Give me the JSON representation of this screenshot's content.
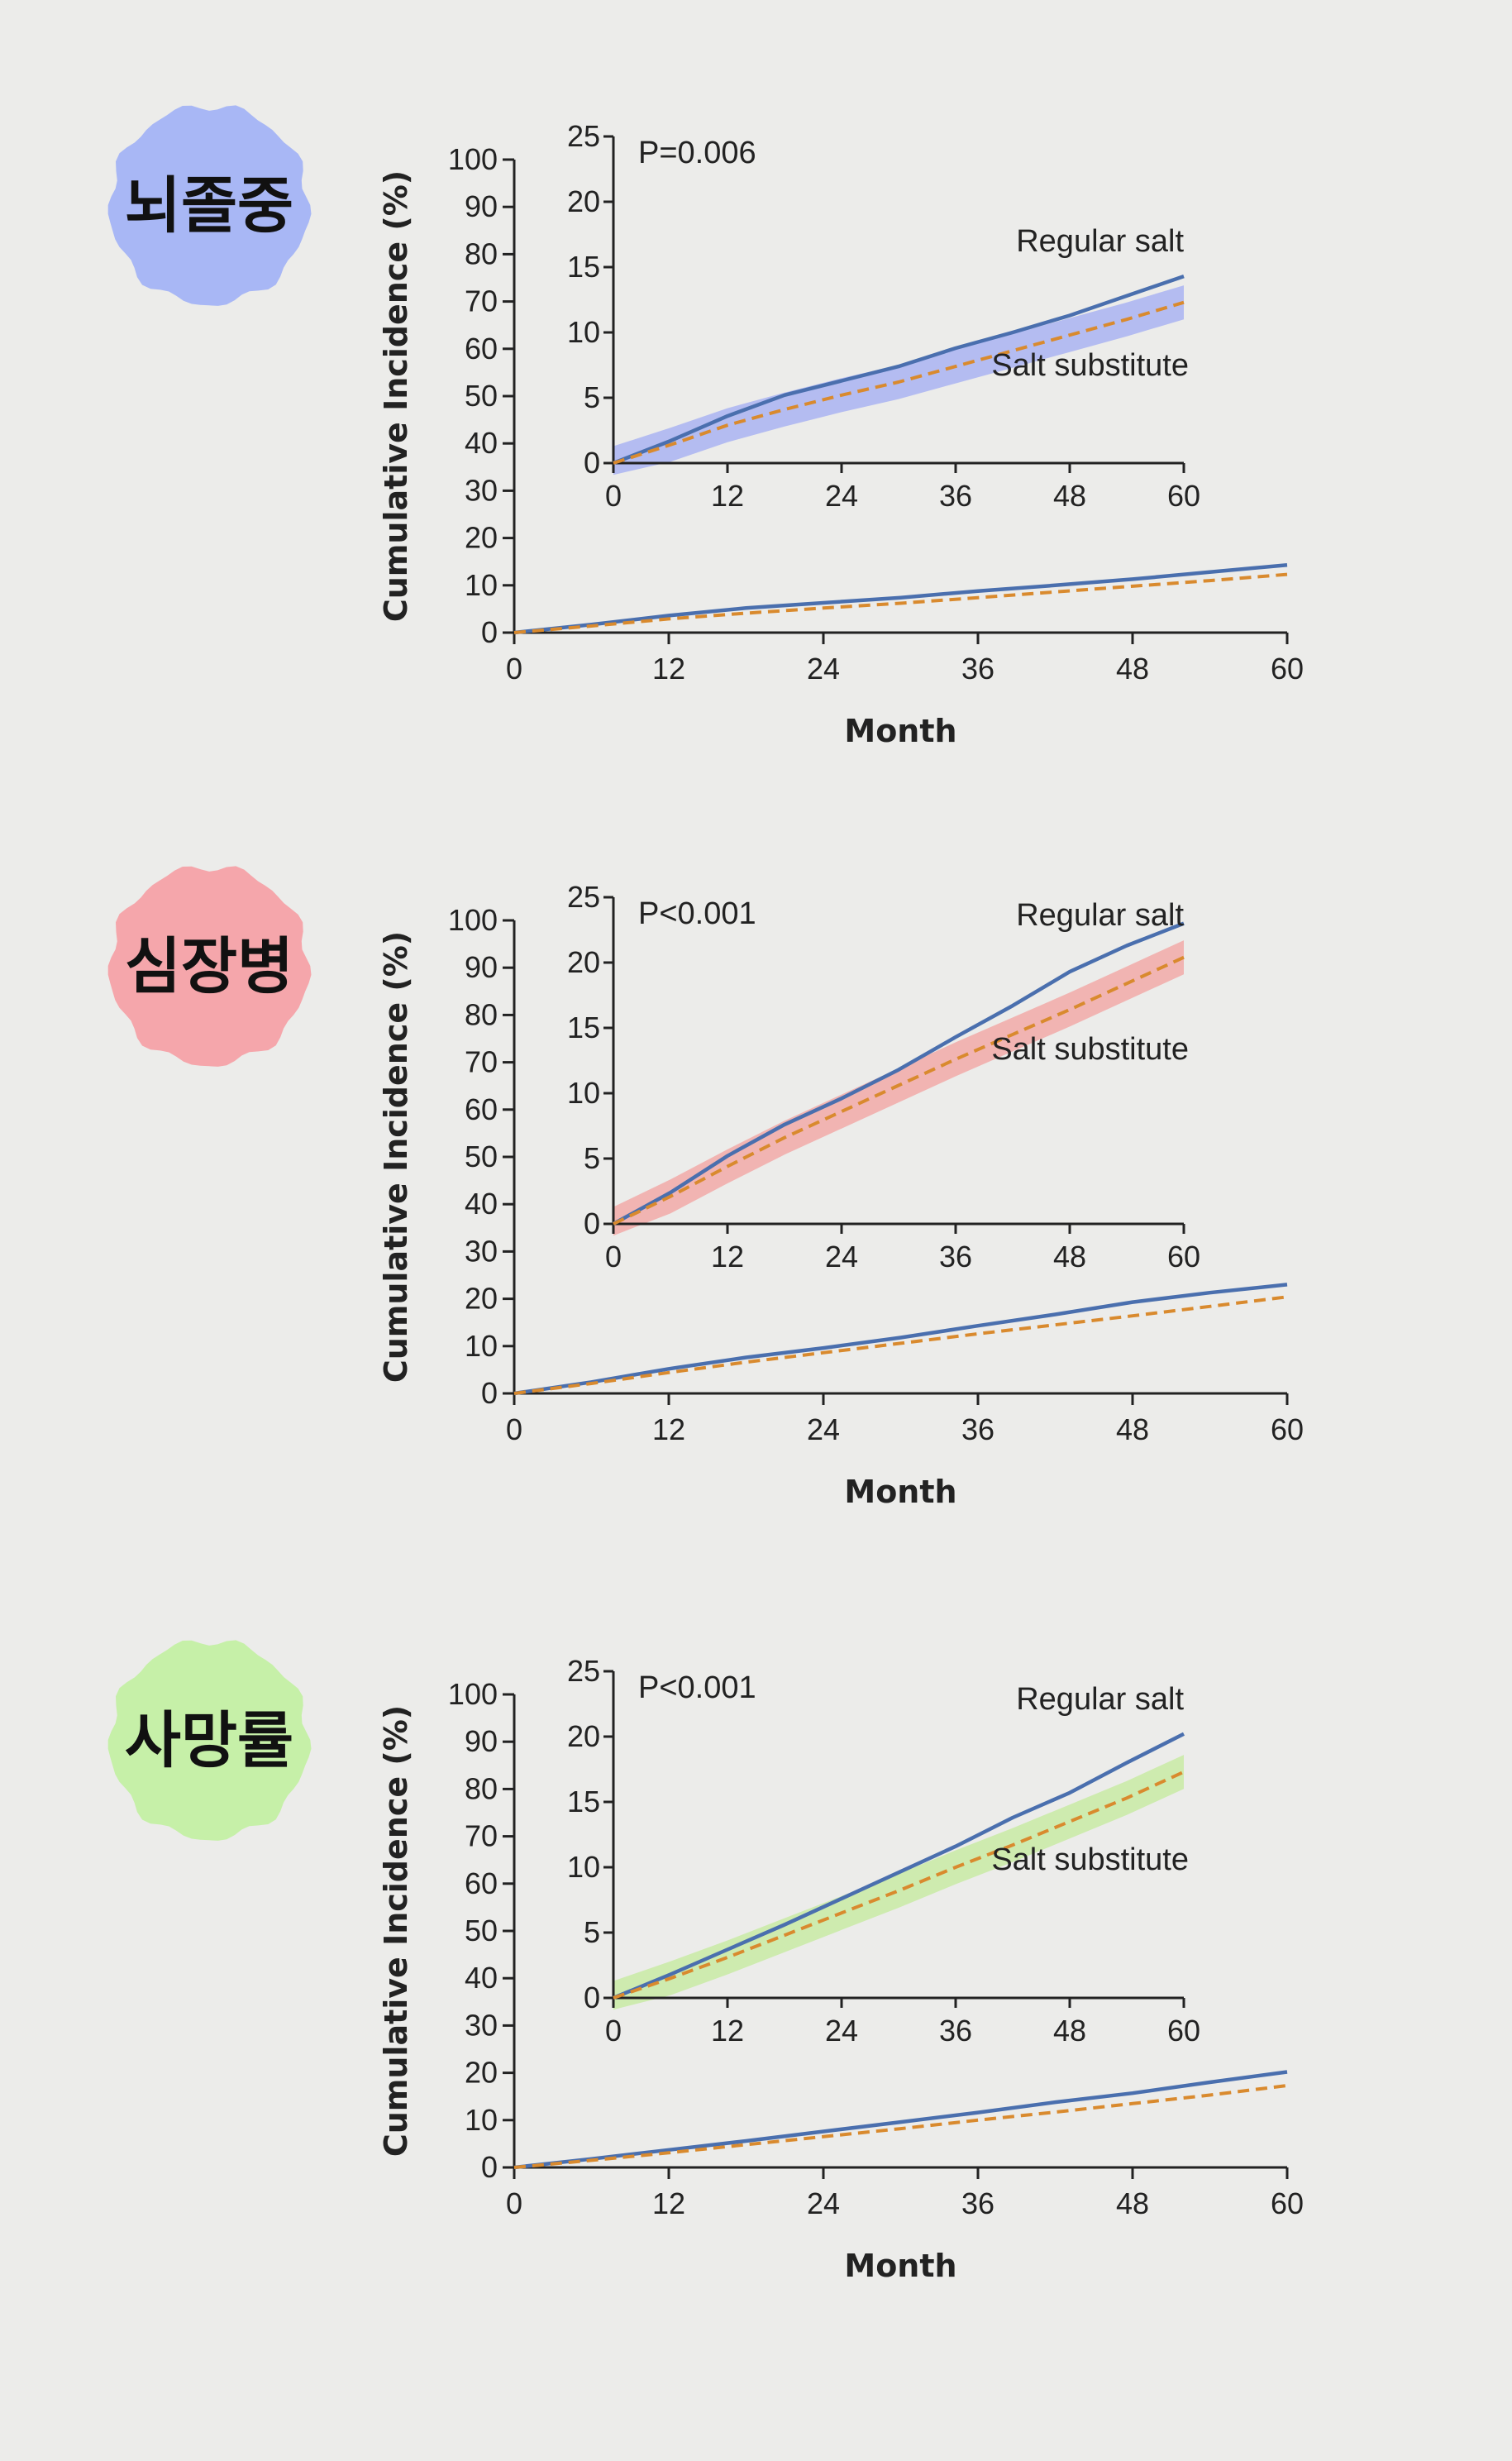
{
  "chart_data": [
    {
      "type": "line",
      "panel_label": "뇌졸중",
      "panel_color": "#a8b7f5",
      "band_color": "#aab4f2",
      "xlabel": "Month",
      "ylabel": "Cumulative Incidence (%)",
      "xlim": [
        0,
        60
      ],
      "ylim": [
        0,
        100
      ],
      "x_ticks": [
        "0",
        "12",
        "24",
        "36",
        "48",
        "60"
      ],
      "y_ticks": [
        "0",
        "10",
        "20",
        "30",
        "40",
        "50",
        "60",
        "70",
        "80",
        "90",
        "100"
      ],
      "series": [
        {
          "name": "Regular salt",
          "color": "#4a6fae",
          "dash": "solid",
          "x": [
            0,
            6,
            12,
            18,
            24,
            30,
            36,
            42,
            48,
            54,
            60
          ],
          "y": [
            0,
            1.7,
            3.6,
            5.2,
            6.3,
            7.4,
            8.8,
            10.0,
            11.3,
            12.8,
            14.3
          ]
        },
        {
          "name": "Salt substitute",
          "color": "#d98a2e",
          "dash": "dashed",
          "x": [
            0,
            6,
            12,
            18,
            24,
            30,
            36,
            42,
            48,
            54,
            60
          ],
          "y": [
            0,
            1.4,
            2.9,
            4.1,
            5.2,
            6.2,
            7.4,
            8.6,
            9.8,
            11.0,
            12.3
          ]
        }
      ],
      "inset": {
        "xlim": [
          0,
          60
        ],
        "ylim": [
          0,
          25
        ],
        "x_ticks": [
          "0",
          "12",
          "24",
          "36",
          "48",
          "60"
        ],
        "y_ticks": [
          "0",
          "5",
          "10",
          "15",
          "20",
          "25"
        ],
        "p_value": "P=0.006",
        "label_regular": "Regular salt",
        "label_substitute": "Salt substitute"
      }
    },
    {
      "type": "line",
      "panel_label": "심장병",
      "panel_color": "#f5a6ab",
      "band_color": "#f2aaa8",
      "xlabel": "Month",
      "ylabel": "Cumulative Incidence (%)",
      "xlim": [
        0,
        60
      ],
      "ylim": [
        0,
        100
      ],
      "x_ticks": [
        "0",
        "12",
        "24",
        "36",
        "48",
        "60"
      ],
      "y_ticks": [
        "0",
        "10",
        "20",
        "30",
        "40",
        "50",
        "60",
        "70",
        "80",
        "90",
        "100"
      ],
      "series": [
        {
          "name": "Regular salt",
          "color": "#4a6fae",
          "dash": "solid",
          "x": [
            0,
            6,
            12,
            18,
            24,
            30,
            36,
            42,
            48,
            54,
            60
          ],
          "y": [
            0,
            2.4,
            5.2,
            7.6,
            9.6,
            11.8,
            14.3,
            16.7,
            19.3,
            21.3,
            23.0
          ]
        },
        {
          "name": "Salt substitute",
          "color": "#d98a2e",
          "dash": "dashed",
          "x": [
            0,
            6,
            12,
            18,
            24,
            30,
            36,
            42,
            48,
            54,
            60
          ],
          "y": [
            0,
            2.1,
            4.4,
            6.6,
            8.6,
            10.6,
            12.6,
            14.5,
            16.4,
            18.4,
            20.4
          ]
        }
      ],
      "inset": {
        "xlim": [
          0,
          60
        ],
        "ylim": [
          0,
          25
        ],
        "x_ticks": [
          "0",
          "12",
          "24",
          "36",
          "48",
          "60"
        ],
        "y_ticks": [
          "0",
          "5",
          "10",
          "15",
          "20",
          "25"
        ],
        "p_value": "P<0.001",
        "label_regular": "Regular salt",
        "label_substitute": "Salt substitute"
      }
    },
    {
      "type": "line",
      "panel_label": "사망률",
      "panel_color": "#c6f0a8",
      "band_color": "#c9eba4",
      "xlabel": "Month",
      "ylabel": "Cumulative Incidence (%)",
      "xlim": [
        0,
        60
      ],
      "ylim": [
        0,
        100
      ],
      "x_ticks": [
        "0",
        "12",
        "24",
        "36",
        "48",
        "60"
      ],
      "y_ticks": [
        "0",
        "10",
        "20",
        "30",
        "40",
        "50",
        "60",
        "70",
        "80",
        "90",
        "100"
      ],
      "series": [
        {
          "name": "Regular salt",
          "color": "#4a6fae",
          "dash": "solid",
          "x": [
            0,
            6,
            12,
            18,
            24,
            30,
            36,
            42,
            48,
            54,
            60
          ],
          "y": [
            0,
            1.8,
            3.7,
            5.6,
            7.6,
            9.6,
            11.6,
            13.8,
            15.7,
            18.0,
            20.2
          ]
        },
        {
          "name": "Salt substitute",
          "color": "#d98a2e",
          "dash": "dashed",
          "x": [
            0,
            6,
            12,
            18,
            24,
            30,
            36,
            42,
            48,
            54,
            60
          ],
          "y": [
            0,
            1.5,
            3.1,
            4.8,
            6.5,
            8.2,
            10.0,
            11.7,
            13.5,
            15.3,
            17.3
          ]
        }
      ],
      "inset": {
        "xlim": [
          0,
          60
        ],
        "ylim": [
          0,
          25
        ],
        "x_ticks": [
          "0",
          "12",
          "24",
          "36",
          "48",
          "60"
        ],
        "y_ticks": [
          "0",
          "5",
          "10",
          "15",
          "20",
          "25"
        ],
        "p_value": "P<0.001",
        "label_regular": "Regular salt",
        "label_substitute": "Salt substitute"
      }
    }
  ]
}
